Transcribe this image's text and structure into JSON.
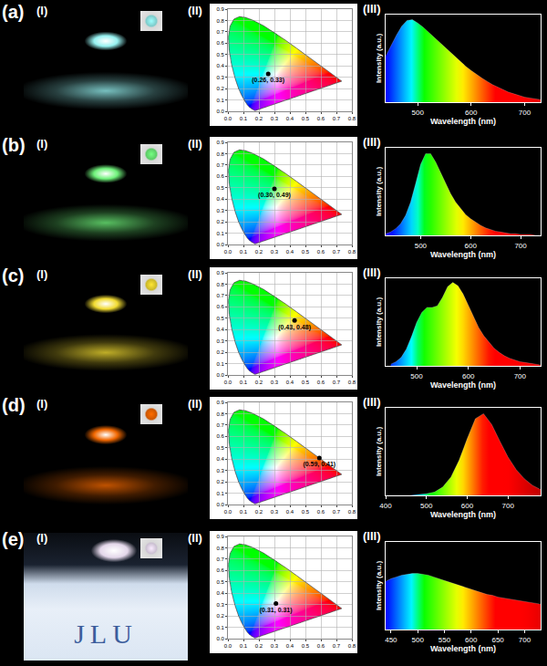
{
  "chart_data": [
    {
      "type": "scatter",
      "annotations": [
        "(II)"
      ],
      "xlim": [
        0,
        0.8
      ],
      "xticks": [
        {
          "value": 0,
          "label": "0.0"
        },
        0.1,
        0.2,
        0.3,
        0.4,
        0.5,
        0.6,
        0.7,
        0.8
      ],
      "ylim": [
        0,
        0.9
      ],
      "yticks": [
        {
          "value": 0,
          "label": "0.0"
        },
        0.1,
        0.2,
        0.3,
        0.4,
        0.5,
        0.6,
        0.7,
        0.8,
        0.9
      ],
      "grid": true,
      "data_labels": true,
      "series": [
        {
          "type": "area",
          "color": "#555555",
          "x": [
            0.1741,
            0.144,
            0.1241,
            0.1096,
            0.0913,
            0.0687,
            0.0454,
            0.0235,
            0.0082,
            0.0039,
            0.0139,
            0.0389,
            0.0743,
            0.1142,
            0.1547,
            0.2296,
            0.3016,
            0.3731,
            0.4441,
            0.5125,
            0.5752,
            0.627,
            0.6915,
            0.7347,
            0.1741
          ],
          "values": [
            0.005,
            0.0297,
            0.0578,
            0.0868,
            0.1327,
            0.2007,
            0.295,
            0.4127,
            0.5384,
            0.6548,
            0.7502,
            0.812,
            0.8338,
            0.8262,
            0.8059,
            0.7543,
            0.6923,
            0.6245,
            0.5547,
            0.4866,
            0.4242,
            0.3725,
            0.3083,
            0.2653,
            0.005
          ]
        },
        {
          "type": "scatter",
          "marker": "circle",
          "color": "#000000",
          "x": [
            0.26
          ],
          "values": [
            0.33
          ],
          "value_labels": [
            "(0.26, 0.33)"
          ]
        }
      ]
    },
    {
      "type": "area",
      "annotations": [
        "(III)"
      ],
      "x_label": "Wavelength (nm)",
      "y_label": "Intensity (a.u.)",
      "tick_labels": "x",
      "xlim": [
        440,
        730
      ],
      "xticks": [
        500,
        600,
        700
      ],
      "ylim": [
        0,
        1.05
      ],
      "yticks": [],
      "x": [
        440,
        450,
        460,
        470,
        480,
        490,
        500,
        510,
        520,
        530,
        540,
        550,
        560,
        570,
        580,
        590,
        600,
        610,
        620,
        630,
        640,
        650,
        660,
        670,
        680,
        690,
        700,
        710,
        720,
        730
      ],
      "values": [
        0.55,
        0.68,
        0.8,
        0.91,
        0.98,
        0.99,
        0.95,
        0.9,
        0.84,
        0.78,
        0.72,
        0.66,
        0.6,
        0.54,
        0.48,
        0.43,
        0.38,
        0.33,
        0.29,
        0.25,
        0.21,
        0.18,
        0.15,
        0.12,
        0.1,
        0.08,
        0.06,
        0.05,
        0.04,
        0.03
      ]
    },
    {
      "type": "scatter",
      "annotations": [
        "(II)"
      ],
      "xlim": [
        0,
        0.8
      ],
      "xticks": [
        {
          "value": 0,
          "label": "0.0"
        },
        0.1,
        0.2,
        0.3,
        0.4,
        0.5,
        0.6,
        0.7,
        0.8
      ],
      "ylim": [
        0,
        0.9
      ],
      "yticks": [
        {
          "value": 0,
          "label": "0.0"
        },
        0.1,
        0.2,
        0.3,
        0.4,
        0.5,
        0.6,
        0.7,
        0.8,
        0.9
      ],
      "grid": true,
      "data_labels": true,
      "series": [
        {
          "type": "area",
          "color": "#555555",
          "x": [
            0.1741,
            0.144,
            0.1241,
            0.1096,
            0.0913,
            0.0687,
            0.0454,
            0.0235,
            0.0082,
            0.0039,
            0.0139,
            0.0389,
            0.0743,
            0.1142,
            0.1547,
            0.2296,
            0.3016,
            0.3731,
            0.4441,
            0.5125,
            0.5752,
            0.627,
            0.6915,
            0.7347,
            0.1741
          ],
          "values": [
            0.005,
            0.0297,
            0.0578,
            0.0868,
            0.1327,
            0.2007,
            0.295,
            0.4127,
            0.5384,
            0.6548,
            0.7502,
            0.812,
            0.8338,
            0.8262,
            0.8059,
            0.7543,
            0.6923,
            0.6245,
            0.5547,
            0.4866,
            0.4242,
            0.3725,
            0.3083,
            0.2653,
            0.005
          ]
        },
        {
          "type": "scatter",
          "marker": "circle",
          "color": "#000000",
          "x": [
            0.3
          ],
          "values": [
            0.49
          ],
          "value_labels": [
            "(0.30, 0.49)"
          ]
        }
      ]
    },
    {
      "type": "area",
      "annotations": [
        "(III)"
      ],
      "x_label": "Wavelength (nm)",
      "y_label": "Intensity (a.u.)",
      "tick_labels": "x",
      "xlim": [
        430,
        740
      ],
      "xticks": [
        500,
        600,
        700
      ],
      "ylim": [
        0,
        1.05
      ],
      "yticks": [],
      "x": [
        430,
        440,
        450,
        460,
        470,
        480,
        490,
        500,
        510,
        520,
        530,
        540,
        550,
        560,
        570,
        580,
        590,
        600,
        610,
        620,
        630,
        640,
        650,
        660,
        670,
        680,
        690,
        700,
        710,
        720,
        730,
        740
      ],
      "values": [
        0.02,
        0.04,
        0.08,
        0.14,
        0.24,
        0.4,
        0.62,
        0.85,
        0.98,
        0.98,
        0.88,
        0.75,
        0.62,
        0.5,
        0.4,
        0.32,
        0.25,
        0.2,
        0.16,
        0.12,
        0.09,
        0.07,
        0.05,
        0.04,
        0.03,
        0.02,
        0.02,
        0.01,
        0.01,
        0.01,
        0,
        0
      ]
    },
    {
      "type": "scatter",
      "annotations": [
        "(II)"
      ],
      "xlim": [
        0,
        0.8
      ],
      "xticks": [
        {
          "value": 0,
          "label": "0.0"
        },
        0.1,
        0.2,
        0.3,
        0.4,
        0.5,
        0.6,
        0.7,
        0.8
      ],
      "ylim": [
        0,
        0.9
      ],
      "yticks": [
        {
          "value": 0,
          "label": "0.0"
        },
        0.1,
        0.2,
        0.3,
        0.4,
        0.5,
        0.6,
        0.7,
        0.8,
        0.9
      ],
      "grid": true,
      "data_labels": true,
      "series": [
        {
          "type": "area",
          "color": "#555555",
          "x": [
            0.1741,
            0.144,
            0.1241,
            0.1096,
            0.0913,
            0.0687,
            0.0454,
            0.0235,
            0.0082,
            0.0039,
            0.0139,
            0.0389,
            0.0743,
            0.1142,
            0.1547,
            0.2296,
            0.3016,
            0.3731,
            0.4441,
            0.5125,
            0.5752,
            0.627,
            0.6915,
            0.7347,
            0.1741
          ],
          "values": [
            0.005,
            0.0297,
            0.0578,
            0.0868,
            0.1327,
            0.2007,
            0.295,
            0.4127,
            0.5384,
            0.6548,
            0.7502,
            0.812,
            0.8338,
            0.8262,
            0.8059,
            0.7543,
            0.6923,
            0.6245,
            0.5547,
            0.4866,
            0.4242,
            0.3725,
            0.3083,
            0.2653,
            0.005
          ]
        },
        {
          "type": "scatter",
          "marker": "circle",
          "color": "#000000",
          "x": [
            0.43
          ],
          "values": [
            0.48
          ],
          "value_labels": [
            "(0.43, 0.48)"
          ]
        }
      ]
    },
    {
      "type": "area",
      "annotations": [
        "(III)"
      ],
      "x_label": "Wavelength (nm)",
      "y_label": "Intensity (a.u.)",
      "tick_labels": "x",
      "xlim": [
        440,
        740
      ],
      "xticks": [
        500,
        600,
        700
      ],
      "ylim": [
        0,
        1.05
      ],
      "yticks": [],
      "x": [
        450,
        460,
        470,
        480,
        490,
        500,
        510,
        520,
        530,
        540,
        550,
        560,
        570,
        580,
        590,
        600,
        610,
        620,
        630,
        640,
        650,
        660,
        670,
        680,
        690,
        700,
        710,
        720,
        730,
        740
      ],
      "values": [
        0.02,
        0.05,
        0.1,
        0.2,
        0.35,
        0.52,
        0.64,
        0.7,
        0.7,
        0.72,
        0.82,
        0.95,
        1.0,
        0.96,
        0.86,
        0.72,
        0.58,
        0.46,
        0.36,
        0.28,
        0.21,
        0.16,
        0.12,
        0.09,
        0.07,
        0.05,
        0.04,
        0.03,
        0.02,
        0.01
      ]
    },
    {
      "type": "scatter",
      "annotations": [
        "(II)"
      ],
      "xlim": [
        0,
        0.8
      ],
      "xticks": [
        {
          "value": 0,
          "label": "0.0"
        },
        0.1,
        0.2,
        0.3,
        0.4,
        0.5,
        0.6,
        0.7,
        0.8
      ],
      "ylim": [
        0,
        0.9
      ],
      "yticks": [
        {
          "value": 0,
          "label": "0.0"
        },
        0.1,
        0.2,
        0.3,
        0.4,
        0.5,
        0.6,
        0.7,
        0.8,
        0.9
      ],
      "grid": true,
      "data_labels": true,
      "series": [
        {
          "type": "area",
          "color": "#555555",
          "x": [
            0.1741,
            0.144,
            0.1241,
            0.1096,
            0.0913,
            0.0687,
            0.0454,
            0.0235,
            0.0082,
            0.0039,
            0.0139,
            0.0389,
            0.0743,
            0.1142,
            0.1547,
            0.2296,
            0.3016,
            0.3731,
            0.4441,
            0.5125,
            0.5752,
            0.627,
            0.6915,
            0.7347,
            0.1741
          ],
          "values": [
            0.005,
            0.0297,
            0.0578,
            0.0868,
            0.1327,
            0.2007,
            0.295,
            0.4127,
            0.5384,
            0.6548,
            0.7502,
            0.812,
            0.8338,
            0.8262,
            0.8059,
            0.7543,
            0.6923,
            0.6245,
            0.5547,
            0.4866,
            0.4242,
            0.3725,
            0.3083,
            0.2653,
            0.005
          ]
        },
        {
          "type": "scatter",
          "marker": "circle",
          "color": "#000000",
          "x": [
            0.59
          ],
          "values": [
            0.41
          ],
          "value_labels": [
            "(0.59, 0.41)"
          ]
        }
      ]
    },
    {
      "type": "area",
      "annotations": [
        "(III)"
      ],
      "x_label": "Wavelength (nm)",
      "y_label": "Intensity (a.u.)",
      "tick_labels": "x",
      "xlim": [
        400,
        780
      ],
      "xticks": [
        400,
        500,
        600,
        700
      ],
      "ylim": [
        0,
        1.05
      ],
      "yticks": [],
      "x": [
        400,
        420,
        440,
        460,
        480,
        500,
        520,
        540,
        560,
        580,
        600,
        620,
        640,
        660,
        680,
        700,
        720,
        740,
        760,
        780
      ],
      "values": [
        0,
        0,
        0,
        0,
        0.01,
        0.02,
        0.04,
        0.1,
        0.22,
        0.42,
        0.68,
        0.92,
        0.98,
        0.85,
        0.65,
        0.46,
        0.31,
        0.2,
        0.12,
        0.07
      ]
    },
    {
      "type": "scatter",
      "annotations": [
        "(II)"
      ],
      "xlim": [
        0,
        0.8
      ],
      "xticks": [
        {
          "value": 0,
          "label": "0.0"
        },
        0.1,
        0.2,
        0.3,
        0.4,
        0.5,
        0.6,
        0.7,
        0.8
      ],
      "ylim": [
        0,
        0.9
      ],
      "yticks": [
        {
          "value": 0,
          "label": "0.0"
        },
        0.1,
        0.2,
        0.3,
        0.4,
        0.5,
        0.6,
        0.7,
        0.8,
        0.9
      ],
      "grid": true,
      "data_labels": true,
      "series": [
        {
          "type": "area",
          "color": "#555555",
          "x": [
            0.1741,
            0.144,
            0.1241,
            0.1096,
            0.0913,
            0.0687,
            0.0454,
            0.0235,
            0.0082,
            0.0039,
            0.0139,
            0.0389,
            0.0743,
            0.1142,
            0.1547,
            0.2296,
            0.3016,
            0.3731,
            0.4441,
            0.5125,
            0.5752,
            0.627,
            0.6915,
            0.7347,
            0.1741
          ],
          "values": [
            0.005,
            0.0297,
            0.0578,
            0.0868,
            0.1327,
            0.2007,
            0.295,
            0.4127,
            0.5384,
            0.6548,
            0.7502,
            0.812,
            0.8338,
            0.8262,
            0.8059,
            0.7543,
            0.6923,
            0.6245,
            0.5547,
            0.4866,
            0.4242,
            0.3725,
            0.3083,
            0.2653,
            0.005
          ]
        },
        {
          "type": "scatter",
          "marker": "circle",
          "color": "#000000",
          "x": [
            0.31
          ],
          "values": [
            0.31
          ],
          "value_labels": [
            "(0.31, 0.31)"
          ]
        }
      ]
    },
    {
      "type": "area",
      "annotations": [
        "(III)"
      ],
      "x_label": "Wavelength (nm)",
      "y_label": "Intensity (a.u.)",
      "tick_labels": "x",
      "xlim": [
        440,
        730
      ],
      "xticks": [
        450,
        500,
        550,
        600,
        650,
        700
      ],
      "ylim": [
        0,
        1.0
      ],
      "yticks": [],
      "x": [
        440,
        450,
        460,
        470,
        480,
        490,
        500,
        510,
        520,
        530,
        540,
        550,
        560,
        570,
        580,
        590,
        600,
        610,
        620,
        630,
        640,
        650,
        660,
        670,
        680,
        690,
        700,
        710,
        720,
        730
      ],
      "values": [
        0.55,
        0.58,
        0.6,
        0.62,
        0.63,
        0.64,
        0.64,
        0.63,
        0.62,
        0.6,
        0.58,
        0.56,
        0.54,
        0.52,
        0.5,
        0.48,
        0.46,
        0.44,
        0.42,
        0.4,
        0.39,
        0.37,
        0.36,
        0.35,
        0.34,
        0.33,
        0.32,
        0.31,
        0.3,
        0.29
      ]
    }
  ],
  "photos": [
    {
      "label": "(a)",
      "sublabel": "(I)"
    },
    {
      "label": "(b)",
      "sublabel": "(I)"
    },
    {
      "label": "(c)",
      "sublabel": "(I)"
    },
    {
      "label": "(d)",
      "sublabel": "(I)"
    },
    {
      "label": "(e)",
      "sublabel": "(I)",
      "text": "JLU"
    }
  ]
}
